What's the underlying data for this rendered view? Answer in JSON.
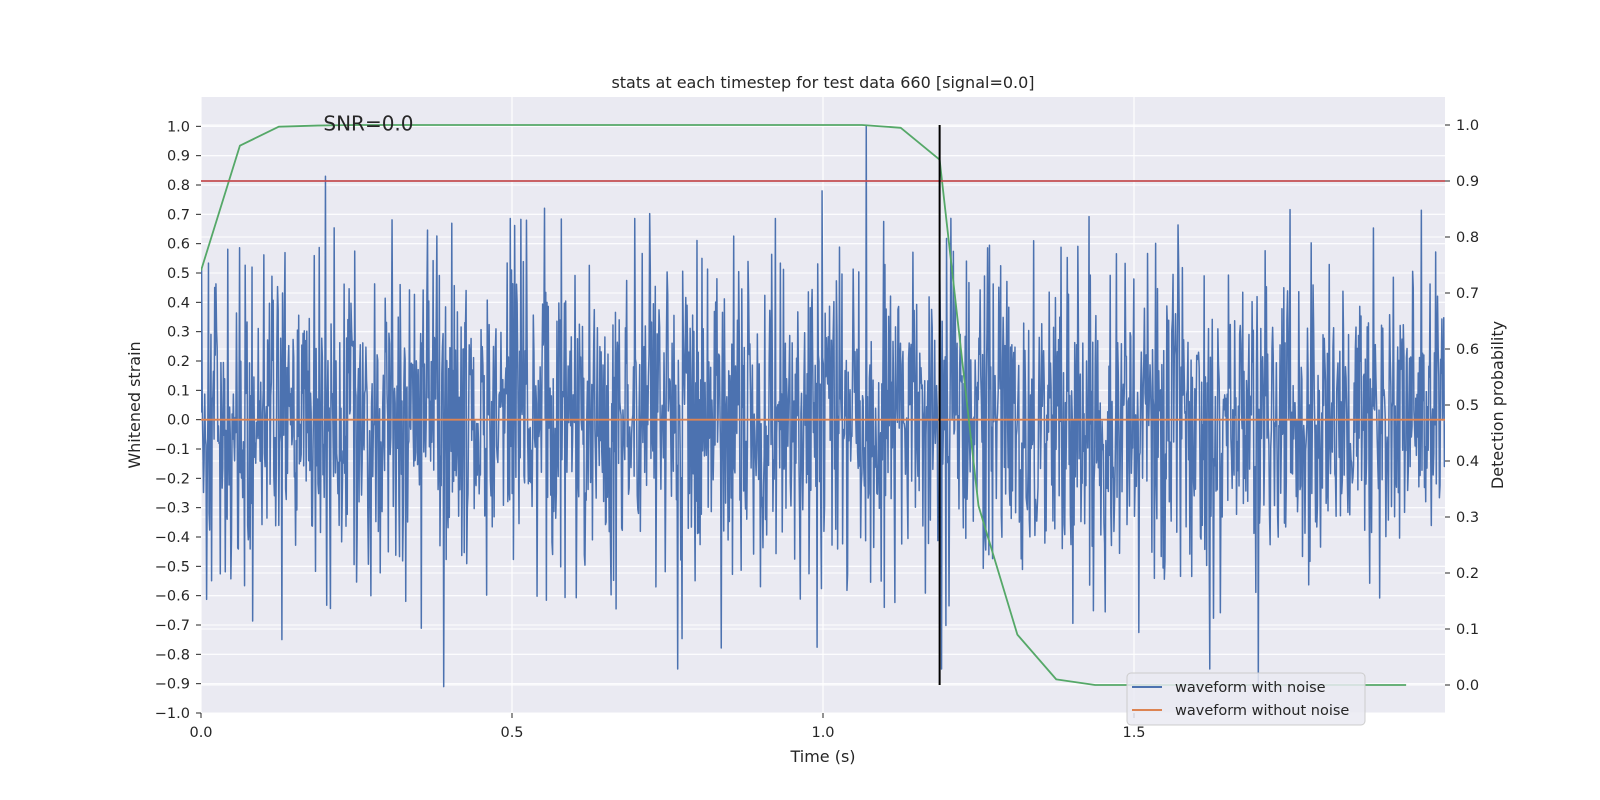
{
  "chart_data": {
    "type": "line",
    "title": "stats at each timestep for test data 660 [signal=0.0]",
    "xlabel": "Time (s)",
    "ylabel_left": "Whitened strain",
    "ylabel_right": "Detection probability",
    "xlim": [
      0.0,
      2.0
    ],
    "ylim_left": [
      -1.0,
      1.1
    ],
    "ylim_right": [
      -0.05,
      1.05
    ],
    "grid": true,
    "x_ticks": [
      "0.0",
      "0.5",
      "1.0",
      "1.5"
    ],
    "y_ticks_left": [
      "1.0",
      "0.9",
      "0.8",
      "0.7",
      "0.6",
      "0.5",
      "0.4",
      "0.3",
      "0.2",
      "0.1",
      "0.0",
      "−0.1",
      "−0.2",
      "−0.3",
      "−0.4",
      "−0.5",
      "−0.6",
      "−0.7",
      "−0.8",
      "−0.9",
      "−1.0"
    ],
    "y_ticks_right": [
      "1.0",
      "0.9",
      "0.8",
      "0.7",
      "0.6",
      "0.5",
      "0.4",
      "0.3",
      "0.2",
      "0.1",
      "0.0"
    ],
    "annotation": "SNR=0.0",
    "annotation_at": {
      "x": 0.2,
      "y": 1.0
    },
    "series": [
      {
        "name": "waveform with noise",
        "color": "#4c72b0",
        "axis": "left",
        "kind": "noise",
        "samples": 2000,
        "amplitude": 0.27,
        "x_range": [
          0.0,
          2.0
        ],
        "spikes": [
          {
            "x": 1.07,
            "y": 1.0
          },
          {
            "x": 0.2,
            "y": 0.83
          },
          {
            "x": 0.39,
            "y": -0.91
          },
          {
            "x": 1.7,
            "y": -0.9
          }
        ]
      },
      {
        "name": "waveform without noise",
        "color": "#dd8452",
        "axis": "left",
        "kind": "line",
        "x": [
          0.0,
          2.0
        ],
        "y": [
          0.0,
          0.0
        ]
      },
      {
        "name": "detection probability",
        "color": "#55a868",
        "axis": "right",
        "kind": "line",
        "x": [
          0.0,
          0.0625,
          0.125,
          0.1875,
          0.25,
          0.5,
          1.0,
          1.0625,
          1.125,
          1.1875,
          1.25,
          1.3125,
          1.375,
          1.4375,
          1.5,
          1.9375
        ],
        "y": [
          0.74,
          0.963,
          0.997,
          0.999,
          1.0,
          1.0,
          1.0,
          1.0,
          0.995,
          0.938,
          0.32,
          0.09,
          0.01,
          0.0,
          0.0,
          0.0
        ]
      }
    ],
    "threshold_line": {
      "axis": "right",
      "y": 0.9,
      "color": "#c44e52"
    },
    "vertical_marker": {
      "x": 1.1875,
      "y_from": 0.0,
      "y_to": 1.0,
      "axis": "right",
      "color": "#000000"
    },
    "legend": {
      "placement": "lower-right",
      "entries": [
        "waveform with noise",
        "waveform without noise"
      ]
    }
  }
}
